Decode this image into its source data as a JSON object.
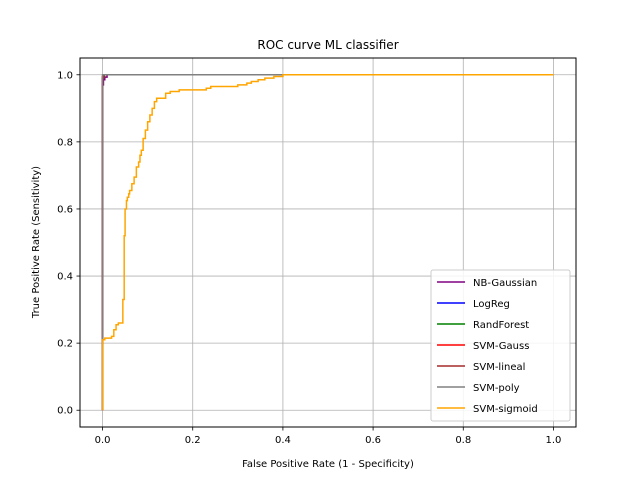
{
  "chart_data": {
    "type": "line",
    "title": "ROC curve ML classifier",
    "xlabel": "False Positive Rate (1 - Specificity)",
    "ylabel": "True Positive Rate (Sensitivity)",
    "xlim": [
      -0.05,
      1.05
    ],
    "ylim": [
      -0.05,
      1.05
    ],
    "xticks": [
      "0.0",
      "0.2",
      "0.4",
      "0.6",
      "0.8",
      "1.0"
    ],
    "yticks": [
      "0.0",
      "0.2",
      "0.4",
      "0.6",
      "0.8",
      "1.0"
    ],
    "grid": true,
    "legend_position": "lower right",
    "series": [
      {
        "name": "NB-Gaussian",
        "color": "#800080",
        "x": [
          0.0,
          0.0,
          0.002,
          0.002,
          0.005,
          0.005,
          0.01,
          0.01,
          0.02,
          1.0
        ],
        "y": [
          0.0,
          0.97,
          0.97,
          0.985,
          0.985,
          0.993,
          0.993,
          1.0,
          1.0,
          1.0
        ]
      },
      {
        "name": "LogReg",
        "color": "#0000ff",
        "x": [
          0.0,
          0.0,
          0.003,
          0.003,
          1.0
        ],
        "y": [
          0.0,
          0.99,
          0.99,
          1.0,
          1.0
        ]
      },
      {
        "name": "RandForest",
        "color": "#008000",
        "x": [
          0.0,
          0.0,
          0.004,
          0.004,
          1.0
        ],
        "y": [
          0.0,
          0.995,
          0.995,
          1.0,
          1.0
        ]
      },
      {
        "name": "SVM-Gauss",
        "color": "#ff0000",
        "x": [
          0.0,
          0.0,
          0.003,
          0.003,
          1.0
        ],
        "y": [
          0.0,
          0.995,
          0.995,
          1.0,
          1.0
        ]
      },
      {
        "name": "SVM-lineal",
        "color": "#a52a2a",
        "x": [
          0.0,
          0.0,
          0.003,
          0.003,
          1.0
        ],
        "y": [
          0.0,
          0.99,
          0.99,
          1.0,
          1.0
        ]
      },
      {
        "name": "SVM-poly",
        "color": "#808080",
        "x": [
          0.0,
          0.0,
          0.38,
          0.38,
          1.0
        ],
        "y": [
          0.0,
          1.0,
          1.0,
          1.0,
          1.0
        ]
      },
      {
        "name": "SVM-sigmoid",
        "color": "#ffa500",
        "x": [
          0.0,
          0.0,
          0.005,
          0.005,
          0.02,
          0.02,
          0.025,
          0.025,
          0.03,
          0.03,
          0.035,
          0.035,
          0.045,
          0.045,
          0.048,
          0.048,
          0.05,
          0.05,
          0.053,
          0.053,
          0.055,
          0.055,
          0.058,
          0.058,
          0.06,
          0.06,
          0.065,
          0.065,
          0.07,
          0.07,
          0.075,
          0.075,
          0.08,
          0.08,
          0.083,
          0.083,
          0.086,
          0.086,
          0.09,
          0.09,
          0.095,
          0.095,
          0.1,
          0.1,
          0.105,
          0.105,
          0.11,
          0.11,
          0.115,
          0.115,
          0.12,
          0.12,
          0.14,
          0.14,
          0.15,
          0.15,
          0.17,
          0.17,
          0.23,
          0.23,
          0.24,
          0.24,
          0.3,
          0.3,
          0.32,
          0.32,
          0.33,
          0.33,
          0.345,
          0.345,
          0.36,
          0.36,
          0.38,
          0.38,
          0.4,
          0.4,
          1.0
        ],
        "y": [
          0.0,
          0.21,
          0.21,
          0.215,
          0.215,
          0.22,
          0.22,
          0.24,
          0.24,
          0.255,
          0.255,
          0.26,
          0.26,
          0.33,
          0.33,
          0.52,
          0.52,
          0.6,
          0.6,
          0.625,
          0.625,
          0.635,
          0.635,
          0.645,
          0.645,
          0.655,
          0.655,
          0.675,
          0.675,
          0.695,
          0.695,
          0.725,
          0.725,
          0.74,
          0.74,
          0.76,
          0.76,
          0.775,
          0.775,
          0.81,
          0.81,
          0.835,
          0.835,
          0.86,
          0.86,
          0.88,
          0.88,
          0.9,
          0.9,
          0.92,
          0.92,
          0.93,
          0.93,
          0.945,
          0.945,
          0.95,
          0.95,
          0.955,
          0.955,
          0.96,
          0.96,
          0.965,
          0.965,
          0.97,
          0.97,
          0.975,
          0.975,
          0.98,
          0.98,
          0.985,
          0.985,
          0.99,
          0.99,
          0.995,
          0.995,
          1.0,
          1.0
        ]
      }
    ]
  }
}
